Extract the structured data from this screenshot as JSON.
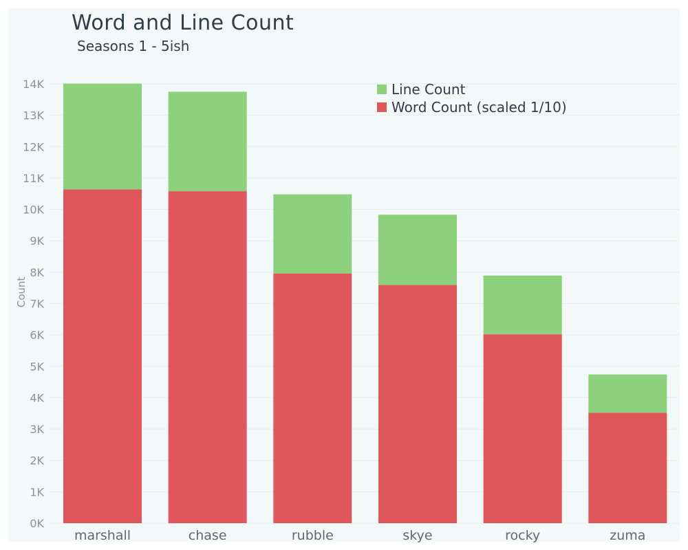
{
  "chart_data": {
    "type": "bar",
    "stacked": true,
    "title": "Word and Line Count",
    "subtitle": "Seasons 1 - 5ish",
    "xlabel": "",
    "ylabel": "Count",
    "categories": [
      "marshall",
      "chase",
      "rubble",
      "skye",
      "rocky",
      "zuma"
    ],
    "series": [
      {
        "name": "Word Count (scaled 1/10)",
        "color": "#e0575b",
        "values": [
          10640,
          10580,
          7960,
          7590,
          6020,
          3520
        ]
      },
      {
        "name": "Line Count",
        "color": "#8ed17d",
        "values": [
          3370,
          3170,
          2520,
          2240,
          1870,
          1220
        ]
      }
    ],
    "ylim": [
      0,
      14000
    ],
    "yticks": [
      0,
      1000,
      2000,
      3000,
      4000,
      5000,
      6000,
      7000,
      8000,
      9000,
      10000,
      11000,
      12000,
      13000,
      14000
    ],
    "ytick_labels": [
      "0K",
      "1K",
      "2K",
      "3K",
      "4K",
      "5K",
      "6K",
      "7K",
      "8K",
      "9K",
      "10K",
      "11K",
      "12K",
      "13K",
      "14K"
    ],
    "grid": true,
    "legend_position": "top-right"
  }
}
